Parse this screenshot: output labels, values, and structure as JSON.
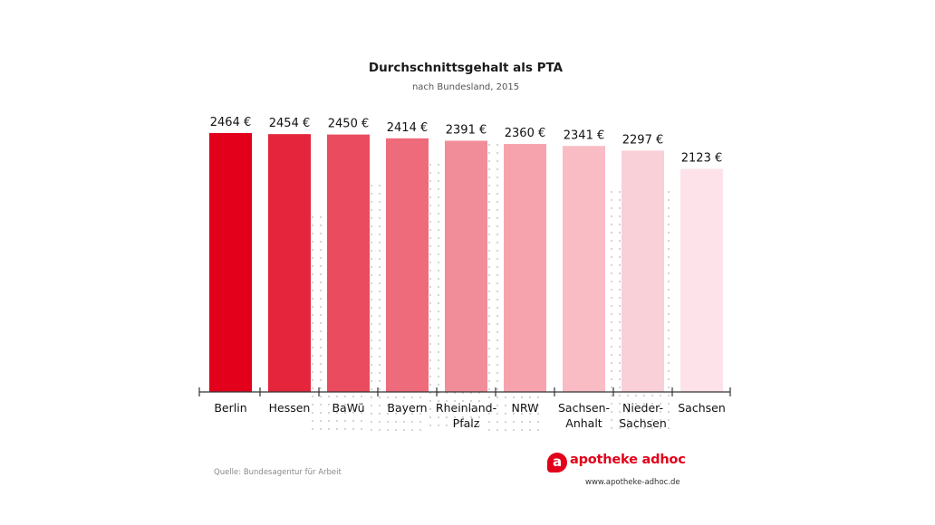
{
  "chart_data": {
    "type": "bar",
    "title": "Durchschnittsgehalt als PTA",
    "subtitle": "nach Bundesland, 2015",
    "categories": [
      [
        "Berlin"
      ],
      [
        "Hessen"
      ],
      [
        "BaWü"
      ],
      [
        "Bayern"
      ],
      [
        "Rheinland-",
        "Pfalz"
      ],
      [
        "NRW"
      ],
      [
        "Sachsen-",
        "Anhalt"
      ],
      [
        "Nieder-",
        "Sachsen"
      ],
      [
        "Sachsen"
      ]
    ],
    "values": [
      2464,
      2454,
      2450,
      2414,
      2391,
      2360,
      2341,
      2297,
      2123
    ],
    "value_labels": [
      "2464 €",
      "2454 €",
      "2450 €",
      "2414 €",
      "2391 €",
      "2360 €",
      "2341 €",
      "2297 €",
      "2123 €"
    ],
    "unit": "€",
    "ylim": [
      0,
      2464
    ],
    "colors": [
      "#e2001a",
      "#e5253c",
      "#ea4b5e",
      "#ee6b7b",
      "#f18d98",
      "#f6a3ad",
      "#f9bcc5",
      "#fad0d8",
      "#fde3e9"
    ],
    "xlabel": "",
    "ylabel": "",
    "grid": false,
    "source": "Quelle: Bundesagentur für Arbeit"
  },
  "brand": {
    "icon_letter": "a",
    "name": "apotheke adhoc",
    "url": "www.apotheke-adhoc.de"
  }
}
